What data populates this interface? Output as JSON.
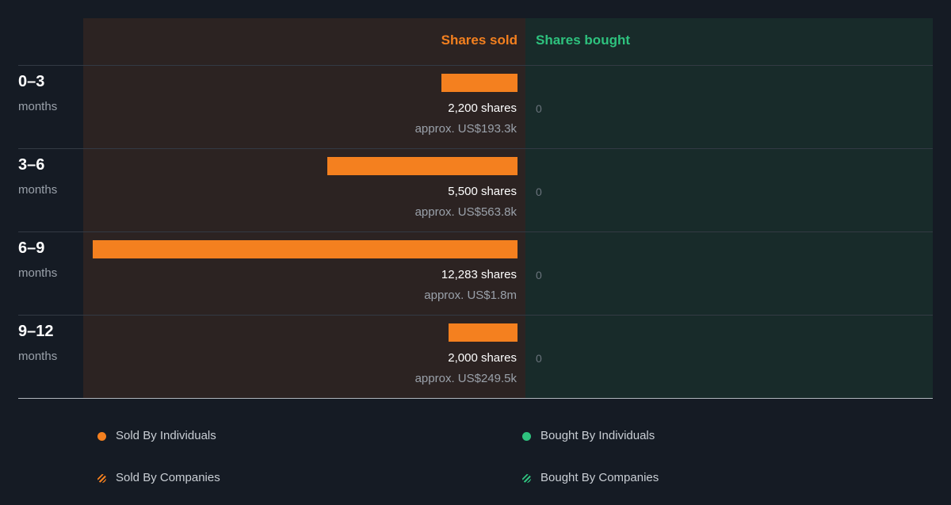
{
  "chart_data": {
    "type": "bar",
    "orientation": "horizontal-diverging",
    "columns": {
      "sold": "Shares sold",
      "bought": "Shares bought"
    },
    "periods": [
      {
        "label": "0–3",
        "unit": "months",
        "sold_shares": 2200,
        "sold_label": "2,200 shares",
        "sold_value": "approx. US$193.3k",
        "bought": "0"
      },
      {
        "label": "3–6",
        "unit": "months",
        "sold_shares": 5500,
        "sold_label": "5,500 shares",
        "sold_value": "approx. US$563.8k",
        "bought": "0"
      },
      {
        "label": "6–9",
        "unit": "months",
        "sold_shares": 12283,
        "sold_label": "12,283 shares",
        "sold_value": "approx. US$1.8m",
        "bought": "0"
      },
      {
        "label": "9–12",
        "unit": "months",
        "sold_shares": 2000,
        "sold_label": "2,000 shares",
        "sold_value": "approx. US$249.5k",
        "bought": "0"
      }
    ],
    "legend": [
      {
        "label": "Sold By Individuals",
        "color": "#f4801f",
        "style": "solid"
      },
      {
        "label": "Bought By Individuals",
        "color": "#2ec27e",
        "style": "solid"
      },
      {
        "label": "Sold By Companies",
        "color": "#f4801f",
        "style": "hatched"
      },
      {
        "label": "Bought By Companies",
        "color": "#2ec27e",
        "style": "hatched"
      }
    ],
    "colors": {
      "sold": "#f4801f",
      "bought": "#2ec27e"
    }
  }
}
